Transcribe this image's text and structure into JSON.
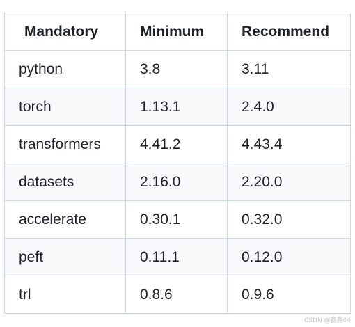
{
  "table": {
    "headers": {
      "mandatory": "Mandatory",
      "minimum": "Minimum",
      "recommend": "Recommend"
    },
    "rows": [
      {
        "package": "python",
        "minimum": "3.8",
        "recommend": "3.11"
      },
      {
        "package": "torch",
        "minimum": "1.13.1",
        "recommend": "2.4.0"
      },
      {
        "package": "transformers",
        "minimum": "4.41.2",
        "recommend": "4.43.4"
      },
      {
        "package": "datasets",
        "minimum": "2.16.0",
        "recommend": "2.20.0"
      },
      {
        "package": "accelerate",
        "minimum": "0.30.1",
        "recommend": "0.32.0"
      },
      {
        "package": "peft",
        "minimum": "0.11.1",
        "recommend": "0.12.0"
      },
      {
        "package": "trl",
        "minimum": "0.8.6",
        "recommend": "0.9.6"
      }
    ]
  },
  "watermark": "CSDN @鑫鑫04",
  "colors": {
    "border": "#d0d7de",
    "stripe": "#f6f8fa",
    "text": "#1f2328"
  }
}
